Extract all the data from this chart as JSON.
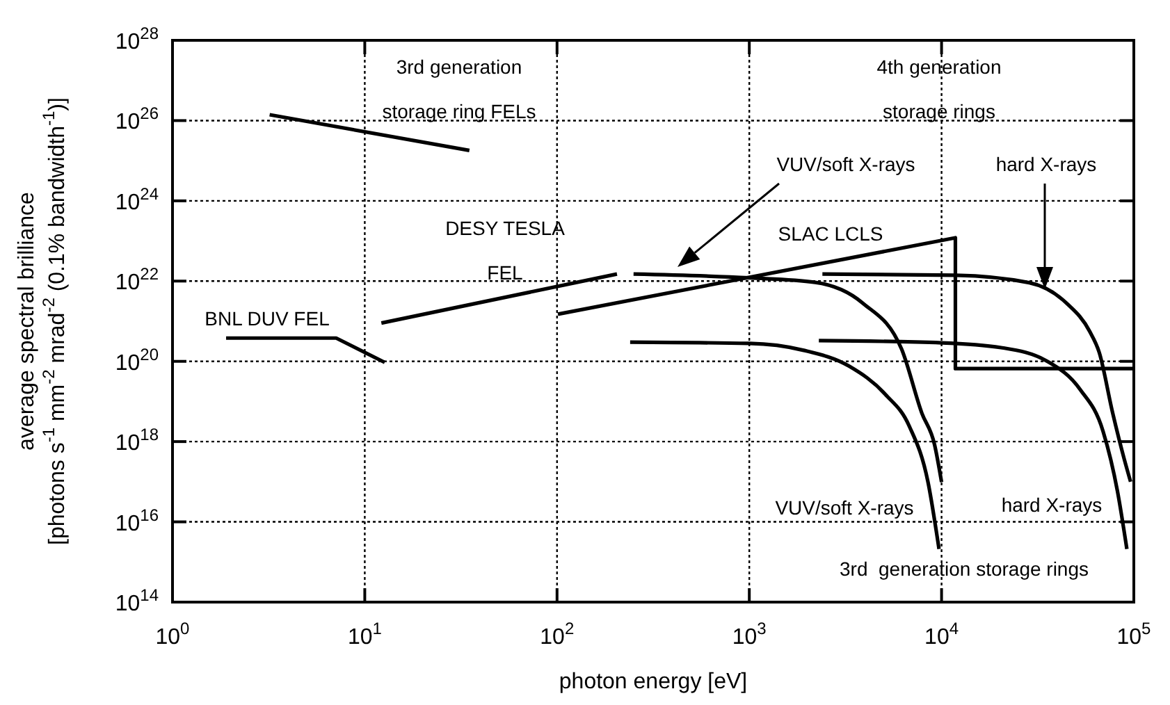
{
  "chart_data": {
    "type": "line",
    "log": "xy",
    "grid": true,
    "xlabel": "photon energy [eV]",
    "ylabel": "average spectral brilliance\n[photons s$^{-1}$ mm$^{-2}$ mrad$^{-2}$ (0.1% bandwidth$^{-1}$)]",
    "xlim": [
      1,
      100000
    ],
    "ylim": [
      100000000000000.0,
      1e+28
    ],
    "xticks": [
      {
        "value": 1,
        "label": "10$^{0}$"
      },
      {
        "value": 10,
        "label": "10$^{1}$"
      },
      {
        "value": 100,
        "label": "10$^{2}$"
      },
      {
        "value": 1000,
        "label": "10$^{3}$"
      },
      {
        "value": 10000,
        "label": "10$^{4}$"
      },
      {
        "value": 100000,
        "label": "10$^{5}$"
      }
    ],
    "yticks": [
      {
        "value": 100000000000000.0,
        "label": "10$^{14}$"
      },
      {
        "value": 1e+16,
        "label": "10$^{16}$"
      },
      {
        "value": 1e+18,
        "label": "10$^{18}$"
      },
      {
        "value": 1e+20,
        "label": "10$^{20}$"
      },
      {
        "value": 1e+22,
        "label": "10$^{22}$"
      },
      {
        "value": 1e+24,
        "label": "10$^{24}$"
      },
      {
        "value": 1e+26,
        "label": "10$^{26}$"
      },
      {
        "value": 1e+28,
        "label": "10$^{28}$"
      }
    ],
    "series": [
      {
        "color": "#000000",
        "x": [
          3.2,
          35
        ],
        "values": [
          1.4e+26,
          1.8e+25
        ]
      },
      {
        "color": "#000000",
        "x": [
          1.9,
          7.1,
          12.7
        ],
        "values": [
          3.8e+20,
          3.8e+20,
          9.4e+19
        ]
      },
      {
        "color": "#000000",
        "x": [
          12.2,
          205
        ],
        "values": [
          9e+20,
          1.5e+22
        ]
      },
      {
        "color": "#000000",
        "x": [
          101,
          11800,
          11800,
          100000
        ],
        "values": [
          1.5e+21,
          1.2e+23,
          6.6e+19,
          6.6e+19
        ]
      },
      {
        "color": "#000000",
        "x": [
          250,
          1000,
          2200,
          3900,
          6200,
          7900,
          9200,
          10000
        ],
        "values": [
          1.5e+22,
          1.2e+22,
          9.3e+21,
          2.8e+21,
          2e+20,
          5.1e+18,
          8.3e+17,
          9.8e+16
        ]
      },
      {
        "color": "#000000",
        "x": [
          240,
          1000,
          1900,
          3300,
          5100,
          6800,
          8500,
          9700
        ],
        "values": [
          3e+20,
          2.8e+20,
          1.9e+20,
          7.6e+19,
          1.5e+19,
          2.4e+18,
          9.8e+16,
          2100000000000000.0
        ]
      },
      {
        "color": "#000000",
        "x": [
          2400,
          11800,
          28600,
          44700,
          58900,
          66000,
          77600,
          89100,
          96200
        ],
        "values": [
          1.5e+22,
          1.4e+22,
          9.1e+21,
          2.8e+21,
          5.6e+20,
          1.7e+20,
          5.2e+18,
          3.7e+17,
          1e+17
        ]
      },
      {
        "color": "#000000",
        "x": [
          2300,
          10000,
          20400,
          35500,
          52500,
          69200,
          82200,
          92000
        ],
        "values": [
          3.3e+20,
          2.9e+20,
          2.2e+20,
          1e+20,
          2e+19,
          1.8e+18,
          5.8e+16,
          2100000000000000.0
        ]
      }
    ],
    "annotations": [
      "3rd generation\nstorage ring FELs",
      "4th generation\nstorage rings",
      "SLAC LCLS",
      "VUV/soft X-rays",
      "hard X-rays",
      "DESY TESLA\nFEL",
      "BNL DUV FEL",
      "VUV/soft X-rays",
      "hard X-rays",
      "3rd  generation storage rings"
    ]
  }
}
